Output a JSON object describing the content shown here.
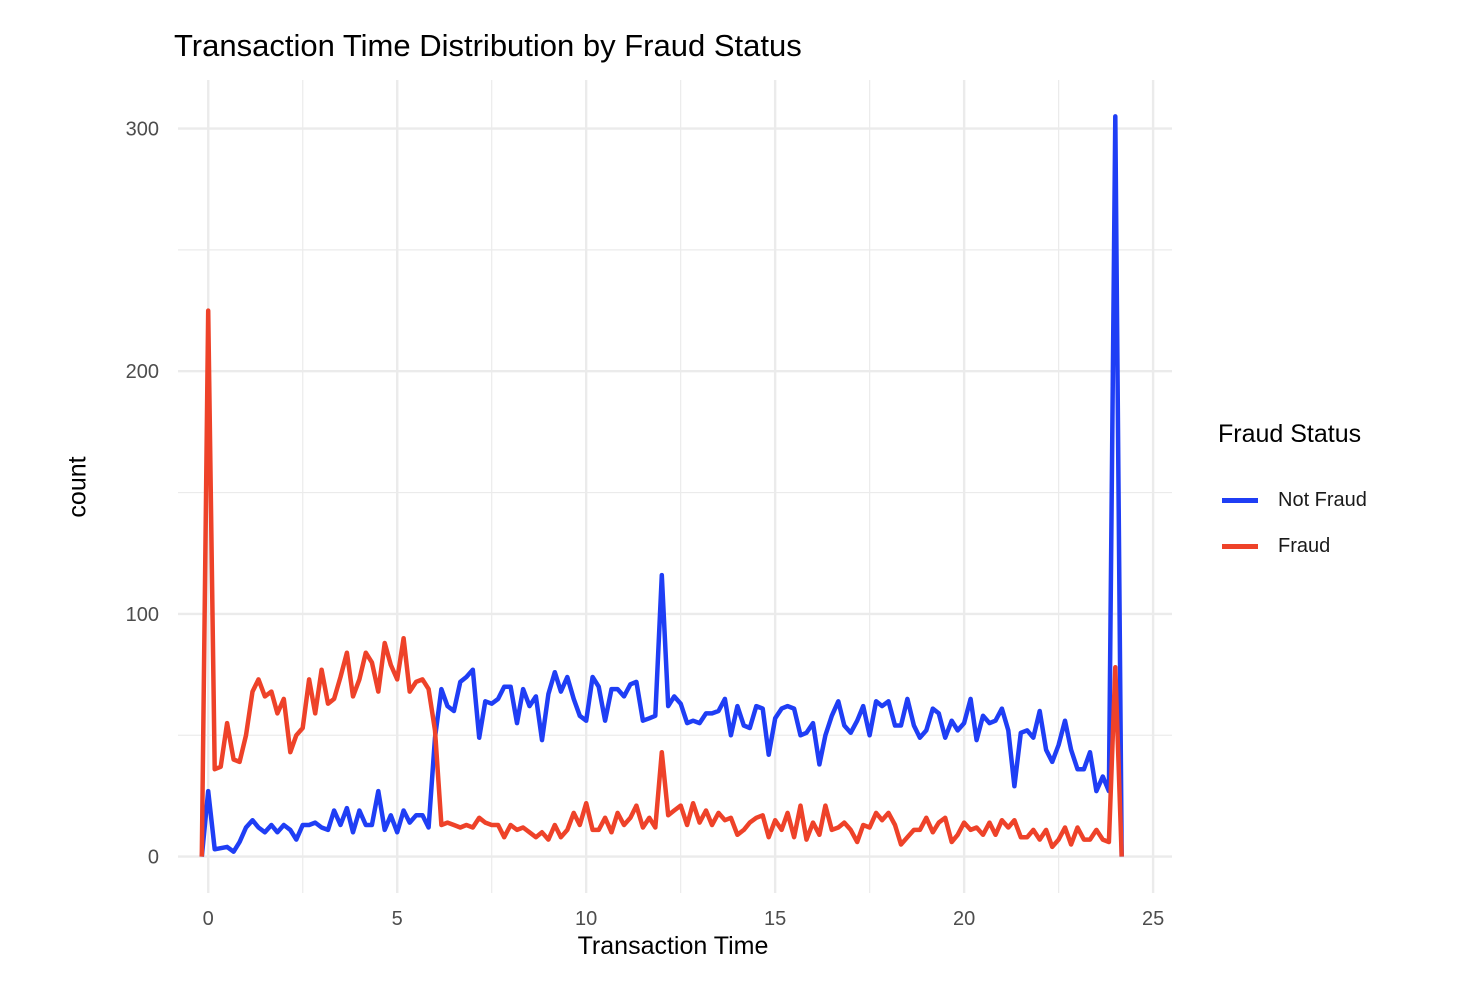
{
  "chart_data": {
    "type": "line",
    "title": "Transaction Time Distribution by Fraud Status",
    "xlabel": "Transaction Time",
    "ylabel": "count",
    "xlim": [
      -0.8,
      25.5
    ],
    "ylim": [
      -15,
      320
    ],
    "x_ticks": [
      0,
      5,
      10,
      15,
      20,
      25
    ],
    "y_ticks": [
      0,
      100,
      200,
      300
    ],
    "grid": true,
    "legend": {
      "title": "Fraud Status",
      "position": "right"
    },
    "series": [
      {
        "name": "Not Fraud",
        "color": "#1f3ef5",
        "points": [
          [
            -0.17,
            0
          ],
          [
            0,
            27
          ],
          [
            0.17,
            3
          ],
          [
            0.5,
            4
          ],
          [
            0.67,
            2
          ],
          [
            0.83,
            6
          ],
          [
            1,
            12
          ],
          [
            1.17,
            15
          ],
          [
            1.33,
            12
          ],
          [
            1.5,
            10
          ],
          [
            1.67,
            13
          ],
          [
            1.83,
            10
          ],
          [
            2,
            13
          ],
          [
            2.17,
            11
          ],
          [
            2.33,
            7
          ],
          [
            2.5,
            13
          ],
          [
            2.67,
            13
          ],
          [
            2.83,
            14
          ],
          [
            3,
            12
          ],
          [
            3.17,
            11
          ],
          [
            3.33,
            19
          ],
          [
            3.5,
            13
          ],
          [
            3.67,
            20
          ],
          [
            3.83,
            10
          ],
          [
            4,
            19
          ],
          [
            4.17,
            13
          ],
          [
            4.33,
            13
          ],
          [
            4.5,
            27
          ],
          [
            4.67,
            11
          ],
          [
            4.83,
            17
          ],
          [
            5,
            10
          ],
          [
            5.17,
            19
          ],
          [
            5.33,
            14
          ],
          [
            5.5,
            17
          ],
          [
            5.67,
            17
          ],
          [
            5.83,
            12
          ],
          [
            6,
            49
          ],
          [
            6.17,
            69
          ],
          [
            6.33,
            62
          ],
          [
            6.5,
            60
          ],
          [
            6.67,
            72
          ],
          [
            6.83,
            74
          ],
          [
            7,
            77
          ],
          [
            7.17,
            49
          ],
          [
            7.33,
            64
          ],
          [
            7.5,
            63
          ],
          [
            7.67,
            65
          ],
          [
            7.83,
            70
          ],
          [
            8,
            70
          ],
          [
            8.17,
            55
          ],
          [
            8.33,
            69
          ],
          [
            8.5,
            62
          ],
          [
            8.67,
            66
          ],
          [
            8.83,
            48
          ],
          [
            9,
            67
          ],
          [
            9.17,
            76
          ],
          [
            9.33,
            68
          ],
          [
            9.5,
            74
          ],
          [
            9.67,
            65
          ],
          [
            9.83,
            58
          ],
          [
            10,
            56
          ],
          [
            10.17,
            74
          ],
          [
            10.33,
            70
          ],
          [
            10.5,
            56
          ],
          [
            10.67,
            69
          ],
          [
            10.83,
            69
          ],
          [
            11,
            66
          ],
          [
            11.17,
            71
          ],
          [
            11.33,
            72
          ],
          [
            11.5,
            56
          ],
          [
            11.67,
            57
          ],
          [
            11.83,
            58
          ],
          [
            12,
            116
          ],
          [
            12.17,
            62
          ],
          [
            12.33,
            66
          ],
          [
            12.5,
            63
          ],
          [
            12.67,
            55
          ],
          [
            12.83,
            56
          ],
          [
            13,
            55
          ],
          [
            13.17,
            59
          ],
          [
            13.33,
            59
          ],
          [
            13.5,
            60
          ],
          [
            13.67,
            65
          ],
          [
            13.83,
            50
          ],
          [
            14,
            62
          ],
          [
            14.17,
            54
          ],
          [
            14.33,
            53
          ],
          [
            14.5,
            62
          ],
          [
            14.67,
            61
          ],
          [
            14.83,
            42
          ],
          [
            15,
            57
          ],
          [
            15.17,
            61
          ],
          [
            15.33,
            62
          ],
          [
            15.5,
            61
          ],
          [
            15.67,
            50
          ],
          [
            15.83,
            51
          ],
          [
            16,
            55
          ],
          [
            16.17,
            38
          ],
          [
            16.33,
            50
          ],
          [
            16.5,
            58
          ],
          [
            16.67,
            64
          ],
          [
            16.83,
            54
          ],
          [
            17,
            51
          ],
          [
            17.17,
            56
          ],
          [
            17.33,
            62
          ],
          [
            17.5,
            50
          ],
          [
            17.67,
            64
          ],
          [
            17.83,
            62
          ],
          [
            18,
            64
          ],
          [
            18.17,
            54
          ],
          [
            18.33,
            54
          ],
          [
            18.5,
            65
          ],
          [
            18.67,
            54
          ],
          [
            18.83,
            49
          ],
          [
            19,
            52
          ],
          [
            19.17,
            61
          ],
          [
            19.33,
            59
          ],
          [
            19.5,
            49
          ],
          [
            19.67,
            56
          ],
          [
            19.83,
            52
          ],
          [
            20,
            55
          ],
          [
            20.17,
            65
          ],
          [
            20.33,
            48
          ],
          [
            20.5,
            58
          ],
          [
            20.67,
            55
          ],
          [
            20.83,
            56
          ],
          [
            21,
            61
          ],
          [
            21.17,
            52
          ],
          [
            21.33,
            29
          ],
          [
            21.5,
            51
          ],
          [
            21.67,
            52
          ],
          [
            21.83,
            49
          ],
          [
            22,
            60
          ],
          [
            22.17,
            44
          ],
          [
            22.33,
            39
          ],
          [
            22.5,
            46
          ],
          [
            22.67,
            56
          ],
          [
            22.83,
            44
          ],
          [
            23,
            36
          ],
          [
            23.17,
            36
          ],
          [
            23.33,
            43
          ],
          [
            23.5,
            27
          ],
          [
            23.67,
            33
          ],
          [
            23.83,
            27
          ],
          [
            24,
            305
          ],
          [
            24.17,
            0
          ]
        ]
      },
      {
        "name": "Fraud",
        "color": "#ee4229",
        "points": [
          [
            -0.17,
            0
          ],
          [
            0,
            225
          ],
          [
            0.17,
            36
          ],
          [
            0.33,
            37
          ],
          [
            0.5,
            55
          ],
          [
            0.67,
            40
          ],
          [
            0.83,
            39
          ],
          [
            1,
            50
          ],
          [
            1.17,
            68
          ],
          [
            1.33,
            73
          ],
          [
            1.5,
            66
          ],
          [
            1.67,
            68
          ],
          [
            1.83,
            59
          ],
          [
            2,
            65
          ],
          [
            2.17,
            43
          ],
          [
            2.33,
            50
          ],
          [
            2.5,
            53
          ],
          [
            2.67,
            73
          ],
          [
            2.83,
            59
          ],
          [
            3,
            77
          ],
          [
            3.17,
            63
          ],
          [
            3.33,
            65
          ],
          [
            3.5,
            74
          ],
          [
            3.67,
            84
          ],
          [
            3.83,
            66
          ],
          [
            4,
            73
          ],
          [
            4.17,
            84
          ],
          [
            4.33,
            80
          ],
          [
            4.5,
            68
          ],
          [
            4.67,
            88
          ],
          [
            4.83,
            79
          ],
          [
            5,
            73
          ],
          [
            5.17,
            90
          ],
          [
            5.33,
            68
          ],
          [
            5.5,
            72
          ],
          [
            5.67,
            73
          ],
          [
            5.83,
            69
          ],
          [
            6,
            52
          ],
          [
            6.17,
            13
          ],
          [
            6.33,
            14
          ],
          [
            6.5,
            13
          ],
          [
            6.67,
            12
          ],
          [
            6.83,
            13
          ],
          [
            7,
            12
          ],
          [
            7.17,
            16
          ],
          [
            7.33,
            14
          ],
          [
            7.5,
            13
          ],
          [
            7.67,
            13
          ],
          [
            7.83,
            8
          ],
          [
            8,
            13
          ],
          [
            8.17,
            11
          ],
          [
            8.33,
            12
          ],
          [
            8.5,
            10
          ],
          [
            8.67,
            8
          ],
          [
            8.83,
            10
          ],
          [
            9,
            7
          ],
          [
            9.17,
            13
          ],
          [
            9.33,
            8
          ],
          [
            9.5,
            11
          ],
          [
            9.67,
            18
          ],
          [
            9.83,
            13
          ],
          [
            10,
            22
          ],
          [
            10.17,
            11
          ],
          [
            10.33,
            11
          ],
          [
            10.5,
            16
          ],
          [
            10.67,
            10
          ],
          [
            10.83,
            18
          ],
          [
            11,
            13
          ],
          [
            11.17,
            16
          ],
          [
            11.33,
            21
          ],
          [
            11.5,
            12
          ],
          [
            11.67,
            16
          ],
          [
            11.83,
            12
          ],
          [
            12,
            43
          ],
          [
            12.17,
            17
          ],
          [
            12.33,
            19
          ],
          [
            12.5,
            21
          ],
          [
            12.67,
            13
          ],
          [
            12.83,
            22
          ],
          [
            13,
            14
          ],
          [
            13.17,
            19
          ],
          [
            13.33,
            13
          ],
          [
            13.5,
            18
          ],
          [
            13.67,
            15
          ],
          [
            13.83,
            16
          ],
          [
            14,
            9
          ],
          [
            14.17,
            11
          ],
          [
            14.33,
            14
          ],
          [
            14.5,
            16
          ],
          [
            14.67,
            17
          ],
          [
            14.83,
            8
          ],
          [
            15,
            15
          ],
          [
            15.17,
            11
          ],
          [
            15.33,
            18
          ],
          [
            15.5,
            8
          ],
          [
            15.67,
            21
          ],
          [
            15.83,
            7
          ],
          [
            16,
            14
          ],
          [
            16.17,
            9
          ],
          [
            16.33,
            21
          ],
          [
            16.5,
            11
          ],
          [
            16.67,
            12
          ],
          [
            16.83,
            14
          ],
          [
            17,
            11
          ],
          [
            17.17,
            6
          ],
          [
            17.33,
            13
          ],
          [
            17.5,
            12
          ],
          [
            17.67,
            18
          ],
          [
            17.83,
            15
          ],
          [
            18,
            18
          ],
          [
            18.17,
            13
          ],
          [
            18.33,
            5
          ],
          [
            18.5,
            8
          ],
          [
            18.67,
            11
          ],
          [
            18.83,
            11
          ],
          [
            19,
            16
          ],
          [
            19.17,
            10
          ],
          [
            19.33,
            14
          ],
          [
            19.5,
            16
          ],
          [
            19.67,
            6
          ],
          [
            19.83,
            9
          ],
          [
            20,
            14
          ],
          [
            20.17,
            11
          ],
          [
            20.33,
            12
          ],
          [
            20.5,
            9
          ],
          [
            20.67,
            14
          ],
          [
            20.83,
            9
          ],
          [
            21,
            15
          ],
          [
            21.17,
            12
          ],
          [
            21.33,
            15
          ],
          [
            21.5,
            8
          ],
          [
            21.67,
            8
          ],
          [
            21.83,
            11
          ],
          [
            22,
            7
          ],
          [
            22.17,
            11
          ],
          [
            22.33,
            4
          ],
          [
            22.5,
            7
          ],
          [
            22.67,
            12
          ],
          [
            22.83,
            5
          ],
          [
            23,
            12
          ],
          [
            23.17,
            7
          ],
          [
            23.33,
            7
          ],
          [
            23.5,
            11
          ],
          [
            23.67,
            7
          ],
          [
            23.83,
            6
          ],
          [
            24,
            78
          ],
          [
            24.17,
            0
          ]
        ]
      }
    ]
  }
}
